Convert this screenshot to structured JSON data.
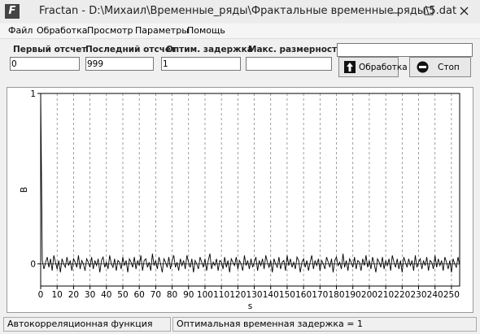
{
  "window": {
    "app_icon": "F",
    "title": "Fractan - D:\\Михаил\\Временные_ряды\\Фрактальные временные ряды\\5.dat"
  },
  "menu": [
    "Файл",
    "Обработка",
    "Просмотр",
    "Параметры",
    "Помощь"
  ],
  "fields": [
    {
      "label": "Первый отсчет",
      "value": "0"
    },
    {
      "label": "Последний отсчет",
      "value": "999"
    },
    {
      "label": "Оптим. задержка",
      "value": "1"
    },
    {
      "label": "Макс. размерность"
    }
  ],
  "buttons": [
    "Обработка",
    "Стоп"
  ],
  "status": [
    "Автокорреляционная функция",
    "Оптимальная временная задержка = 1"
  ],
  "chart_data": {
    "type": "line",
    "y_label": "В",
    "x_label": "s",
    "color": "#000000",
    "grid": true,
    "xlim": [
      0,
      255
    ],
    "ylim": [
      -0.13,
      1
    ],
    "xticks": [
      0,
      10,
      20,
      30,
      40,
      50,
      60,
      70,
      80,
      90,
      100,
      110,
      120,
      130,
      140,
      150,
      160,
      170,
      180,
      190,
      200,
      210,
      220,
      230,
      240,
      250
    ],
    "yticks": [
      0,
      1
    ],
    "x": [
      0,
      1,
      2,
      3,
      4,
      5,
      6,
      7,
      8,
      9,
      10,
      11,
      12,
      13,
      14,
      15,
      16,
      17,
      18,
      19,
      20,
      21,
      22,
      23,
      24,
      25,
      26,
      27,
      28,
      29,
      30,
      31,
      32,
      33,
      34,
      35,
      36,
      37,
      38,
      39,
      40,
      41,
      42,
      43,
      44,
      45,
      46,
      47,
      48,
      49,
      50,
      51,
      52,
      53,
      54,
      55,
      56,
      57,
      58,
      59,
      60,
      61,
      62,
      63,
      64,
      65,
      66,
      67,
      68,
      69,
      70,
      71,
      72,
      73,
      74,
      75,
      76,
      77,
      78,
      79,
      80,
      81,
      82,
      83,
      84,
      85,
      86,
      87,
      88,
      89,
      90,
      91,
      92,
      93,
      94,
      95,
      96,
      97,
      98,
      99,
      100,
      101,
      102,
      103,
      104,
      105,
      106,
      107,
      108,
      109,
      110,
      111,
      112,
      113,
      114,
      115,
      116,
      117,
      118,
      119,
      120,
      121,
      122,
      123,
      124,
      125,
      126,
      127,
      128,
      129,
      130,
      131,
      132,
      133,
      134,
      135,
      136,
      137,
      138,
      139,
      140,
      141,
      142,
      143,
      144,
      145,
      146,
      147,
      148,
      149,
      150,
      151,
      152,
      153,
      154,
      155,
      156,
      157,
      158,
      159,
      160,
      161,
      162,
      163,
      164,
      165,
      166,
      167,
      168,
      169,
      170,
      171,
      172,
      173,
      174,
      175,
      176,
      177,
      178,
      179,
      180,
      181,
      182,
      183,
      184,
      185,
      186,
      187,
      188,
      189,
      190,
      191,
      192,
      193,
      194,
      195,
      196,
      197,
      198,
      199,
      200,
      201,
      202,
      203,
      204,
      205,
      206,
      207,
      208,
      209,
      210,
      211,
      212,
      213,
      214,
      215,
      216,
      217,
      218,
      219,
      220,
      221,
      222,
      223,
      224,
      225,
      226,
      227,
      228,
      229,
      230,
      231,
      232,
      233,
      234,
      235,
      236,
      237,
      238,
      239,
      240,
      241,
      242,
      243,
      244,
      245,
      246,
      247,
      248,
      249,
      250,
      251,
      252,
      253,
      254,
      255
    ],
    "values": [
      1,
      0.02,
      -0.03,
      0.01,
      0.04,
      -0.02,
      0.03,
      -0.04,
      0.05,
      0.01,
      -0.03,
      0.02,
      -0.05,
      0.03,
      0.0,
      -0.02,
      0.04,
      -0.01,
      0.02,
      -0.04,
      0.03,
      0.01,
      -0.02,
      0.05,
      -0.03,
      0.02,
      0.0,
      -0.04,
      0.03,
      0.01,
      -0.02,
      0.04,
      -0.03,
      0.02,
      -0.01,
      0.03,
      -0.05,
      0.02,
      0.04,
      -0.02,
      0.01,
      -0.03,
      0.05,
      0.0,
      -0.02,
      0.03,
      -0.04,
      0.02,
      0.01,
      -0.03,
      0.04,
      -0.01,
      0.02,
      -0.05,
      0.03,
      0.01,
      -0.02,
      0.04,
      -0.03,
      0.02,
      -0.01,
      0.05,
      -0.04,
      0.02,
      0.03,
      -0.02,
      0.01,
      -0.04,
      0.06,
      -0.01,
      0.02,
      -0.03,
      0.04,
      0.0,
      -0.05,
      0.03,
      0.01,
      -0.02,
      0.04,
      -0.03,
      0.02,
      0.05,
      -0.02,
      0.01,
      -0.04,
      0.03,
      -0.01,
      0.02,
      -0.03,
      0.05,
      0.01,
      -0.02,
      0.03,
      -0.05,
      0.02,
      0.0,
      -0.03,
      0.04,
      0.01,
      -0.02,
      0.03,
      -0.04,
      0.02,
      0.06,
      -0.03,
      0.01,
      -0.01,
      0.03,
      -0.04,
      0.02,
      0.01,
      -0.03,
      0.04,
      -0.02,
      0.02,
      -0.05,
      0.03,
      0.01,
      -0.01,
      0.04,
      -0.03,
      0.02,
      0.0,
      -0.04,
      0.05,
      -0.01,
      0.02,
      -0.03,
      0.03,
      -0.02,
      0.01,
      0.04,
      -0.04,
      0.02,
      -0.01,
      0.03,
      -0.03,
      0.05,
      0.01,
      -0.02,
      0.02,
      -0.05,
      0.03,
      0.0,
      -0.02,
      0.04,
      -0.03,
      0.01,
      0.02,
      -0.04,
      0.05,
      -0.01,
      0.03,
      -0.02,
      0.01,
      -0.03,
      0.04,
      0.02,
      -0.05,
      0.01,
      0.03,
      -0.02,
      0.02,
      -0.04,
      0.01,
      0.05,
      -0.03,
      0.02,
      -0.01,
      0.03,
      -0.04,
      0.02,
      0.0,
      -0.03,
      0.04,
      0.01,
      -0.02,
      0.03,
      -0.05,
      0.02,
      0.04,
      -0.01,
      0.01,
      -0.03,
      0.06,
      -0.02,
      0.02,
      -0.04,
      0.03,
      0.01,
      -0.02,
      0.04,
      -0.03,
      0.02,
      0.01,
      -0.04,
      0.03,
      -0.01,
      0.05,
      -0.02,
      0.02,
      -0.03,
      0.04,
      0.0,
      -0.05,
      0.03,
      0.01,
      -0.02,
      0.04,
      -0.03,
      0.02,
      -0.01,
      0.03,
      -0.04,
      0.05,
      0.01,
      -0.02,
      0.03,
      -0.03,
      0.02,
      -0.05,
      0.04,
      0.01,
      -0.02,
      0.03,
      -0.01,
      0.02,
      -0.04,
      0.05,
      -0.02,
      0.01,
      0.03,
      -0.03,
      0.02,
      -0.01,
      0.04,
      -0.04,
      0.02,
      0.01,
      -0.03,
      0.05,
      -0.02,
      0.03,
      -0.01,
      0.02,
      -0.04,
      0.04,
      0.01,
      -0.03,
      0.02,
      -0.05,
      0.03,
      0.0,
      -0.02,
      0.04,
      -0.01
    ]
  }
}
